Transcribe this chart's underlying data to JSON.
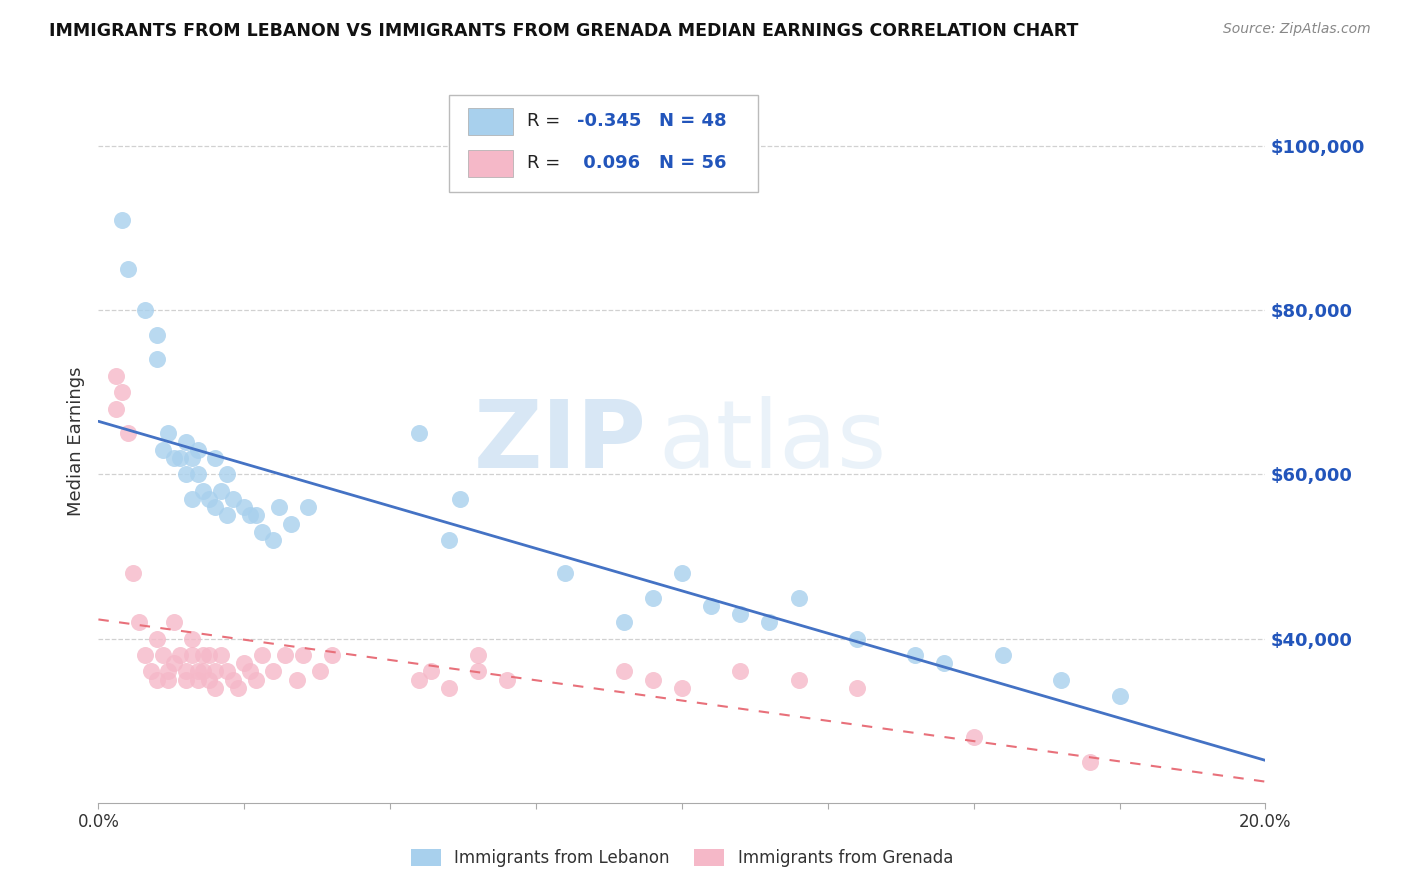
{
  "title": "IMMIGRANTS FROM LEBANON VS IMMIGRANTS FROM GRENADA MEDIAN EARNINGS CORRELATION CHART",
  "source": "Source: ZipAtlas.com",
  "ylabel": "Median Earnings",
  "xlim": [
    0.0,
    0.2
  ],
  "ylim": [
    20000,
    108000
  ],
  "yticks": [
    40000,
    60000,
    80000,
    100000
  ],
  "ytick_labels": [
    "$40,000",
    "$60,000",
    "$80,000",
    "$100,000"
  ],
  "xticks": [
    0.0,
    0.025,
    0.05,
    0.075,
    0.1,
    0.125,
    0.15,
    0.175,
    0.2
  ],
  "xtick_labels": [
    "0.0%",
    "",
    "",
    "",
    "",
    "",
    "",
    "",
    "20.0%"
  ],
  "color_blue": "#a8d0ed",
  "color_pink": "#f5b8c8",
  "line_blue": "#4472c4",
  "line_pink": "#e8707a",
  "watermark_zip": "ZIP",
  "watermark_atlas": "atlas",
  "blue_r": "-0.345",
  "blue_n": "48",
  "pink_r": "0.096",
  "pink_n": "56",
  "legend_label_blue": "Immigrants from Lebanon",
  "legend_label_pink": "Immigrants from Grenada",
  "blue_scatter_x": [
    0.004,
    0.005,
    0.008,
    0.01,
    0.01,
    0.011,
    0.012,
    0.013,
    0.014,
    0.015,
    0.015,
    0.016,
    0.016,
    0.017,
    0.017,
    0.018,
    0.019,
    0.02,
    0.02,
    0.021,
    0.022,
    0.022,
    0.023,
    0.025,
    0.026,
    0.027,
    0.028,
    0.03,
    0.031,
    0.033,
    0.036,
    0.055,
    0.06,
    0.062,
    0.08,
    0.09,
    0.095,
    0.1,
    0.105,
    0.11,
    0.115,
    0.12,
    0.13,
    0.14,
    0.145,
    0.155,
    0.165,
    0.175
  ],
  "blue_scatter_y": [
    91000,
    85000,
    80000,
    77000,
    74000,
    63000,
    65000,
    62000,
    62000,
    60000,
    64000,
    57000,
    62000,
    60000,
    63000,
    58000,
    57000,
    56000,
    62000,
    58000,
    55000,
    60000,
    57000,
    56000,
    55000,
    55000,
    53000,
    52000,
    56000,
    54000,
    56000,
    65000,
    52000,
    57000,
    48000,
    42000,
    45000,
    48000,
    44000,
    43000,
    42000,
    45000,
    40000,
    38000,
    37000,
    38000,
    35000,
    33000
  ],
  "pink_scatter_x": [
    0.003,
    0.003,
    0.004,
    0.005,
    0.006,
    0.007,
    0.008,
    0.009,
    0.01,
    0.01,
    0.011,
    0.012,
    0.012,
    0.013,
    0.013,
    0.014,
    0.015,
    0.015,
    0.016,
    0.016,
    0.017,
    0.017,
    0.018,
    0.018,
    0.019,
    0.019,
    0.02,
    0.02,
    0.021,
    0.022,
    0.023,
    0.024,
    0.025,
    0.026,
    0.027,
    0.028,
    0.03,
    0.032,
    0.034,
    0.035,
    0.038,
    0.04,
    0.055,
    0.057,
    0.06,
    0.065,
    0.065,
    0.07,
    0.09,
    0.095,
    0.1,
    0.11,
    0.12,
    0.13,
    0.15,
    0.17
  ],
  "pink_scatter_y": [
    72000,
    68000,
    70000,
    65000,
    48000,
    42000,
    38000,
    36000,
    40000,
    35000,
    38000,
    36000,
    35000,
    37000,
    42000,
    38000,
    36000,
    35000,
    40000,
    38000,
    36000,
    35000,
    38000,
    36000,
    38000,
    35000,
    36000,
    34000,
    38000,
    36000,
    35000,
    34000,
    37000,
    36000,
    35000,
    38000,
    36000,
    38000,
    35000,
    38000,
    36000,
    38000,
    35000,
    36000,
    34000,
    38000,
    36000,
    35000,
    36000,
    35000,
    34000,
    36000,
    35000,
    34000,
    28000,
    25000
  ]
}
